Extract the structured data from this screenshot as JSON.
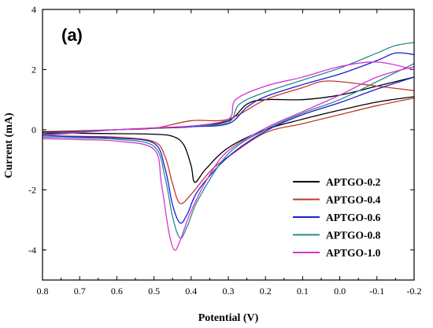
{
  "chart_data": {
    "type": "line",
    "title": "",
    "panel_label": "(a)",
    "xlabel": "Potential (V)",
    "ylabel": "Current (mA)",
    "xlim": [
      0.8,
      -0.2
    ],
    "ylim": [
      -5,
      4
    ],
    "x_ticks": [
      0.8,
      0.7,
      0.6,
      0.5,
      0.4,
      0.3,
      0.2,
      0.1,
      0.0,
      -0.1,
      -0.2
    ],
    "x_tick_labels": [
      "0.8",
      "0.7",
      "0.6",
      "0.5",
      "0.4",
      "0.3",
      "0.2",
      "0.1",
      "0.0",
      "-0.1",
      "-0.2"
    ],
    "y_ticks": [
      -4,
      -2,
      0,
      2,
      4
    ],
    "y_tick_labels": [
      "-4",
      "-2",
      "0",
      "2",
      "4"
    ],
    "grid": false,
    "legend_position": "bottom-right",
    "series": [
      {
        "name": "APTGO-0.2",
        "color": "#000000",
        "cathodic": [
          [
            0.8,
            -0.1
          ],
          [
            0.7,
            -0.12
          ],
          [
            0.6,
            -0.13
          ],
          [
            0.5,
            -0.15
          ],
          [
            0.45,
            -0.22
          ],
          [
            0.42,
            -0.5
          ],
          [
            0.4,
            -1.2
          ],
          [
            0.39,
            -1.75
          ],
          [
            0.36,
            -1.3
          ],
          [
            0.3,
            -0.6
          ],
          [
            0.2,
            0.0
          ],
          [
            0.1,
            0.35
          ],
          [
            0.0,
            0.65
          ],
          [
            -0.1,
            0.92
          ],
          [
            -0.2,
            1.1
          ]
        ],
        "anodic": [
          [
            -0.2,
            1.75
          ],
          [
            -0.1,
            1.45
          ],
          [
            0.0,
            1.15
          ],
          [
            0.1,
            1.0
          ],
          [
            0.2,
            1.0
          ],
          [
            0.25,
            0.85
          ],
          [
            0.3,
            0.3
          ],
          [
            0.4,
            0.1
          ],
          [
            0.5,
            0.05
          ],
          [
            0.6,
            0.0
          ],
          [
            0.7,
            -0.04
          ],
          [
            0.8,
            -0.07
          ]
        ]
      },
      {
        "name": "APTGO-0.4",
        "color": "#c0392b",
        "cathodic": [
          [
            0.8,
            -0.2
          ],
          [
            0.7,
            -0.22
          ],
          [
            0.6,
            -0.25
          ],
          [
            0.5,
            -0.4
          ],
          [
            0.47,
            -0.9
          ],
          [
            0.45,
            -1.8
          ],
          [
            0.43,
            -2.45
          ],
          [
            0.4,
            -2.15
          ],
          [
            0.35,
            -1.4
          ],
          [
            0.3,
            -0.9
          ],
          [
            0.2,
            -0.1
          ],
          [
            0.1,
            0.2
          ],
          [
            0.0,
            0.5
          ],
          [
            -0.1,
            0.8
          ],
          [
            -0.2,
            1.05
          ]
        ],
        "anodic": [
          [
            -0.2,
            1.3
          ],
          [
            -0.1,
            1.45
          ],
          [
            0.0,
            1.6
          ],
          [
            0.05,
            1.6
          ],
          [
            0.1,
            1.4
          ],
          [
            0.2,
            1.0
          ],
          [
            0.3,
            0.35
          ],
          [
            0.4,
            0.3
          ],
          [
            0.5,
            0.05
          ],
          [
            0.6,
            0.0
          ],
          [
            0.7,
            -0.05
          ],
          [
            0.8,
            -0.1
          ]
        ]
      },
      {
        "name": "APTGO-0.6",
        "color": "#1c1cd6",
        "cathodic": [
          [
            0.8,
            -0.2
          ],
          [
            0.7,
            -0.24
          ],
          [
            0.6,
            -0.28
          ],
          [
            0.5,
            -0.45
          ],
          [
            0.47,
            -1.3
          ],
          [
            0.45,
            -2.5
          ],
          [
            0.43,
            -3.1
          ],
          [
            0.41,
            -2.8
          ],
          [
            0.38,
            -2.0
          ],
          [
            0.3,
            -0.9
          ],
          [
            0.2,
            -0.05
          ],
          [
            0.1,
            0.5
          ],
          [
            0.0,
            0.9
          ],
          [
            -0.1,
            1.35
          ],
          [
            -0.2,
            1.75
          ]
        ],
        "anodic": [
          [
            -0.2,
            2.5
          ],
          [
            -0.15,
            2.55
          ],
          [
            -0.1,
            2.3
          ],
          [
            0.0,
            1.85
          ],
          [
            0.1,
            1.5
          ],
          [
            0.2,
            1.1
          ],
          [
            0.25,
            0.75
          ],
          [
            0.3,
            0.2
          ],
          [
            0.4,
            0.1
          ],
          [
            0.5,
            0.05
          ],
          [
            0.6,
            0.0
          ],
          [
            0.7,
            -0.07
          ],
          [
            0.8,
            -0.15
          ]
        ]
      },
      {
        "name": "APTGO-0.8",
        "color": "#2a8c8c",
        "cathodic": [
          [
            0.8,
            -0.25
          ],
          [
            0.7,
            -0.28
          ],
          [
            0.6,
            -0.32
          ],
          [
            0.5,
            -0.55
          ],
          [
            0.47,
            -1.6
          ],
          [
            0.45,
            -2.9
          ],
          [
            0.43,
            -3.6
          ],
          [
            0.41,
            -3.2
          ],
          [
            0.38,
            -2.3
          ],
          [
            0.3,
            -0.8
          ],
          [
            0.2,
            0.0
          ],
          [
            0.1,
            0.55
          ],
          [
            0.0,
            1.0
          ],
          [
            -0.1,
            1.6
          ],
          [
            -0.2,
            2.2
          ]
        ],
        "anodic": [
          [
            -0.2,
            2.9
          ],
          [
            -0.15,
            2.8
          ],
          [
            -0.1,
            2.55
          ],
          [
            0.0,
            2.05
          ],
          [
            0.1,
            1.65
          ],
          [
            0.2,
            1.25
          ],
          [
            0.27,
            0.85
          ],
          [
            0.3,
            0.25
          ],
          [
            0.4,
            0.12
          ],
          [
            0.5,
            0.06
          ],
          [
            0.6,
            0.0
          ],
          [
            0.7,
            -0.08
          ],
          [
            0.8,
            -0.18
          ]
        ]
      },
      {
        "name": "APTGO-1.0",
        "color": "#d633d6",
        "cathodic": [
          [
            0.8,
            -0.3
          ],
          [
            0.7,
            -0.33
          ],
          [
            0.6,
            -0.38
          ],
          [
            0.5,
            -0.65
          ],
          [
            0.48,
            -1.8
          ],
          [
            0.46,
            -3.4
          ],
          [
            0.445,
            -4.0
          ],
          [
            0.43,
            -3.7
          ],
          [
            0.4,
            -2.7
          ],
          [
            0.35,
            -1.5
          ],
          [
            0.3,
            -0.7
          ],
          [
            0.2,
            0.05
          ],
          [
            0.1,
            0.6
          ],
          [
            0.0,
            1.15
          ],
          [
            -0.1,
            1.75
          ],
          [
            -0.2,
            2.1
          ]
        ],
        "anodic": [
          [
            -0.2,
            2.0
          ],
          [
            -0.1,
            2.25
          ],
          [
            0.0,
            2.1
          ],
          [
            0.1,
            1.75
          ],
          [
            0.2,
            1.45
          ],
          [
            0.28,
            1.0
          ],
          [
            0.3,
            0.35
          ],
          [
            0.4,
            0.12
          ],
          [
            0.5,
            0.06
          ],
          [
            0.6,
            0.0
          ],
          [
            0.7,
            -0.1
          ],
          [
            0.8,
            -0.2
          ]
        ]
      }
    ]
  }
}
